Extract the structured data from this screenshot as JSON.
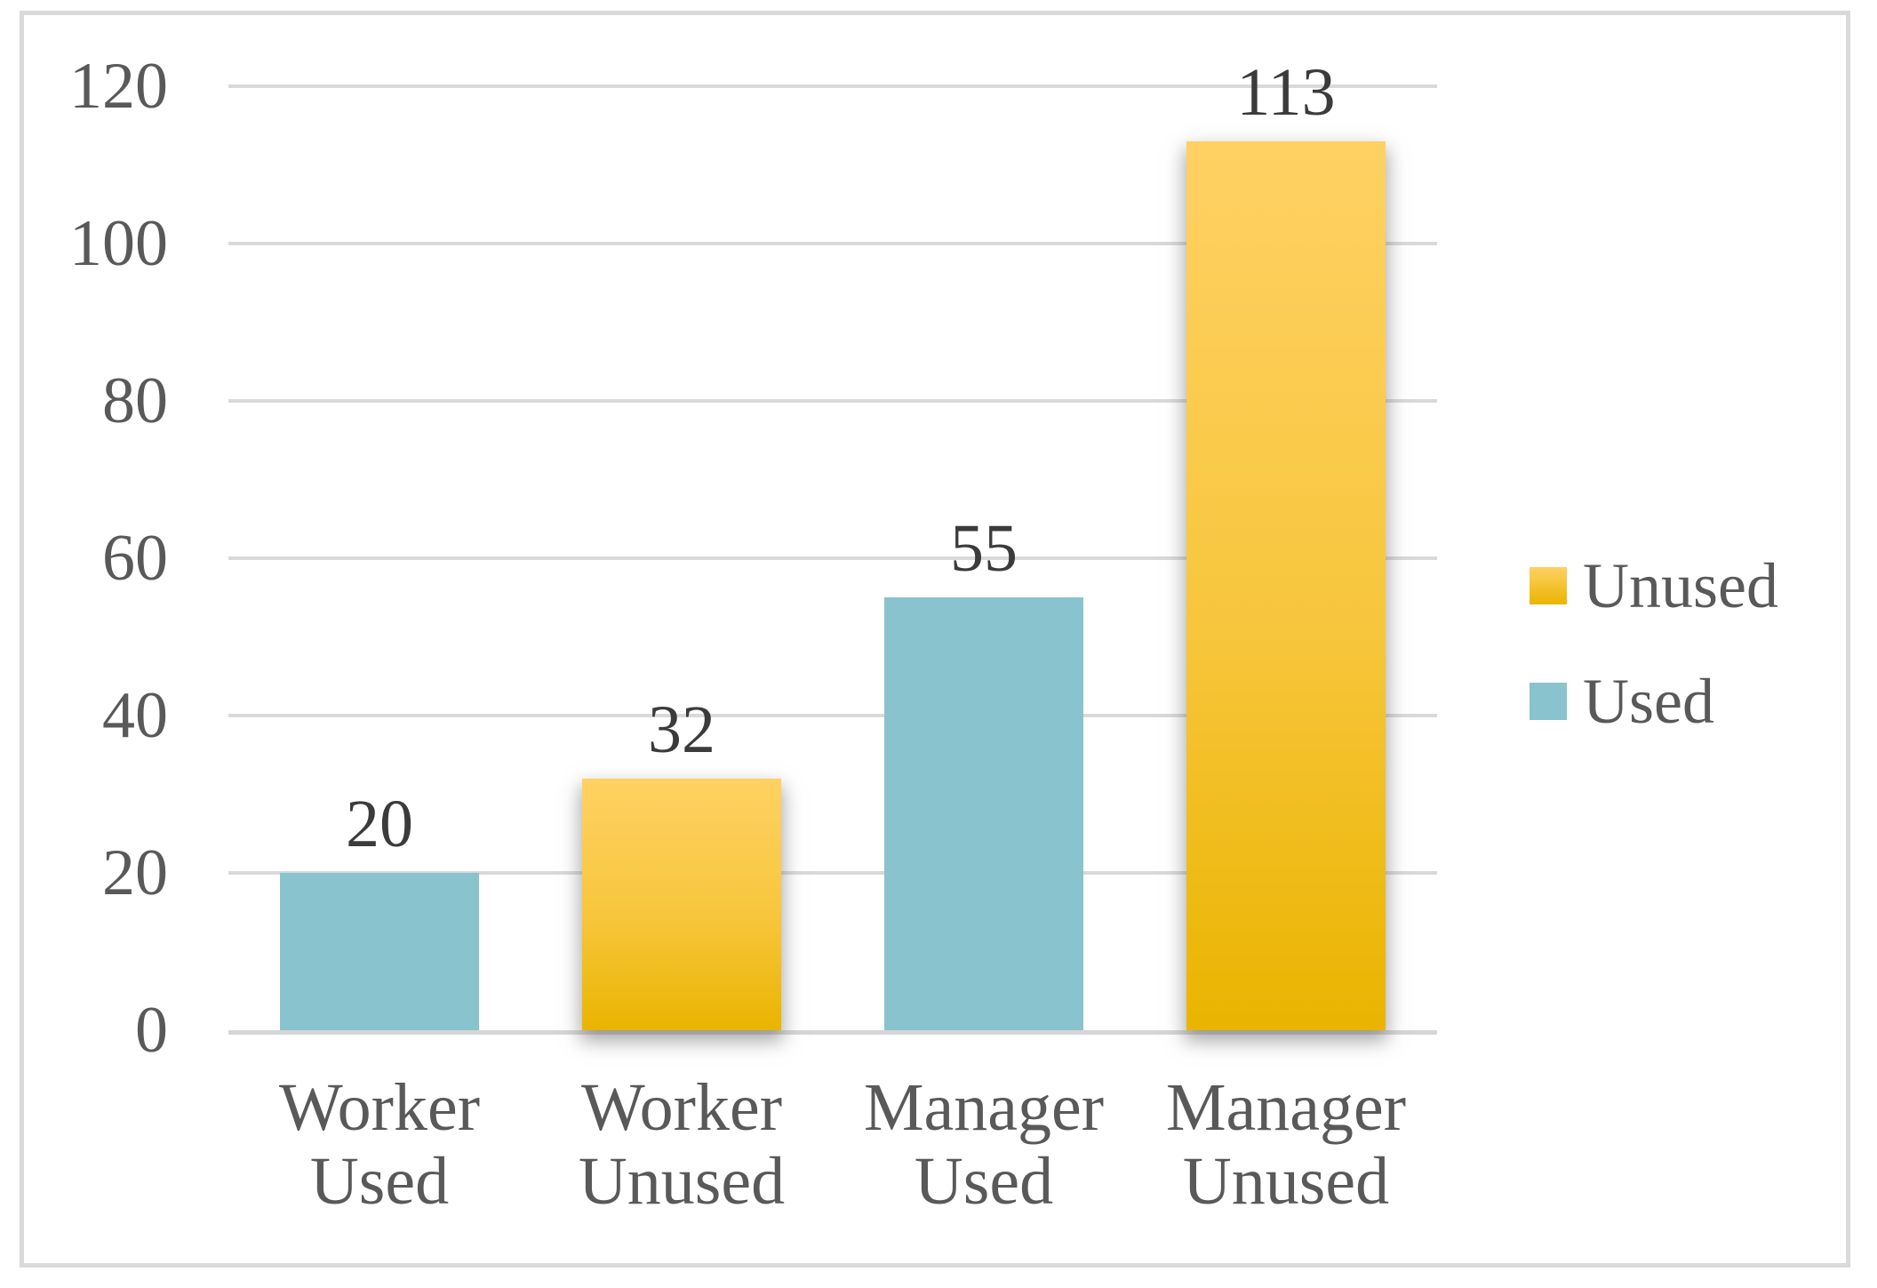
{
  "chart_data": {
    "type": "bar",
    "title": "",
    "categories": [
      "Worker Used",
      "Worker Unused",
      "Manager Used",
      "Manager Unused"
    ],
    "values": [
      20,
      32,
      55,
      113
    ],
    "series_of_bar": [
      "Used",
      "Unused",
      "Used",
      "Unused"
    ],
    "data_labels": [
      "20",
      "32",
      "55",
      "113"
    ],
    "y_ticks": [
      0,
      20,
      40,
      60,
      80,
      100,
      120
    ],
    "ylim": [
      0,
      120
    ],
    "grid": true,
    "xlabel": "",
    "ylabel": "",
    "legend": {
      "position": "right",
      "entries": [
        {
          "label": "Unused",
          "series": "Unused"
        },
        {
          "label": "Used",
          "series": "Used"
        }
      ]
    }
  },
  "colors": {
    "background": "#FFFFFF",
    "frame_border": "#D9D9D9",
    "gridline": "#D9D9D9",
    "axis_line": "#D6D6D6",
    "tick_text": "#595959",
    "category_text": "#595959",
    "data_label_text": "#3B3B3B",
    "used_bar": "#89C3CE",
    "unused_bar_top": "#FFD163",
    "unused_bar_mid": "#F7C63C",
    "unused_bar_bottom": "#EAB400"
  }
}
